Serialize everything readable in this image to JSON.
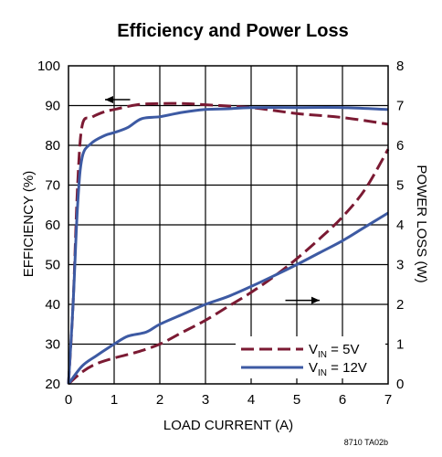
{
  "chart_data": {
    "type": "line",
    "title": "Efficiency and Power Loss",
    "xlabel": "LOAD CURRENT (A)",
    "ylabel_left": "EFFICIENCY (%)",
    "ylabel_right": "POWER LOSS (W)",
    "xlim": [
      0,
      7
    ],
    "ylim_left": [
      20,
      100
    ],
    "ylim_right": [
      0,
      8
    ],
    "x_ticks": [
      "0",
      "1",
      "2",
      "3",
      "4",
      "5",
      "6",
      "7"
    ],
    "y_left_ticks": [
      "20",
      "30",
      "40",
      "50",
      "60",
      "70",
      "80",
      "90",
      "100"
    ],
    "y_right_ticks": [
      "0",
      "1",
      "2",
      "3",
      "4",
      "5",
      "6",
      "7",
      "8"
    ],
    "grid": true,
    "legend_position": "bottom-right",
    "legend": [
      {
        "prefix": "V",
        "sub": "IN",
        "suffix": " = 5V",
        "color": "#7b1a33",
        "dash": "dashed"
      },
      {
        "prefix": "V",
        "sub": "IN",
        "suffix": " = 12V",
        "color": "#3d5aa3",
        "dash": "solid"
      }
    ],
    "series": [
      {
        "axis": "left",
        "color": "#7b1a33",
        "dash": "dashed",
        "points": [
          [
            0,
            20
          ],
          [
            0.1,
            40
          ],
          [
            0.2,
            70
          ],
          [
            0.3,
            85
          ],
          [
            0.5,
            87
          ],
          [
            0.8,
            88.5
          ],
          [
            1,
            89
          ],
          [
            1.5,
            90.2
          ],
          [
            2,
            90.5
          ],
          [
            2.5,
            90.5
          ],
          [
            3,
            90.2
          ],
          [
            4,
            89.5
          ],
          [
            5,
            88
          ],
          [
            6,
            87
          ],
          [
            7,
            85.3
          ]
        ]
      },
      {
        "axis": "left",
        "color": "#3d5aa3",
        "dash": "solid",
        "points": [
          [
            0,
            20
          ],
          [
            0.1,
            40
          ],
          [
            0.2,
            65
          ],
          [
            0.3,
            77
          ],
          [
            0.5,
            80.5
          ],
          [
            0.8,
            82.5
          ],
          [
            1,
            83.2
          ],
          [
            1.3,
            84.5
          ],
          [
            1.6,
            86.7
          ],
          [
            2,
            87.2
          ],
          [
            2.5,
            88.3
          ],
          [
            3,
            89
          ],
          [
            3.5,
            89.2
          ],
          [
            4,
            89.5
          ],
          [
            5,
            89.5
          ],
          [
            6,
            89.5
          ],
          [
            7,
            89
          ]
        ]
      },
      {
        "axis": "right",
        "color": "#7b1a33",
        "dash": "dashed",
        "points": [
          [
            0,
            0
          ],
          [
            0.3,
            0.3
          ],
          [
            0.6,
            0.5
          ],
          [
            1,
            0.65
          ],
          [
            1.5,
            0.8
          ],
          [
            2,
            1.0
          ],
          [
            2.5,
            1.3
          ],
          [
            3,
            1.6
          ],
          [
            3.5,
            1.95
          ],
          [
            4,
            2.3
          ],
          [
            4.5,
            2.7
          ],
          [
            5,
            3.15
          ],
          [
            5.5,
            3.65
          ],
          [
            6,
            4.2
          ],
          [
            6.5,
            4.9
          ],
          [
            7,
            5.9
          ]
        ]
      },
      {
        "axis": "right",
        "color": "#3d5aa3",
        "dash": "solid",
        "points": [
          [
            0,
            0
          ],
          [
            0.3,
            0.45
          ],
          [
            0.6,
            0.7
          ],
          [
            1,
            1.0
          ],
          [
            1.3,
            1.2
          ],
          [
            1.7,
            1.3
          ],
          [
            2,
            1.5
          ],
          [
            2.5,
            1.75
          ],
          [
            3,
            2.0
          ],
          [
            3.5,
            2.2
          ],
          [
            4,
            2.45
          ],
          [
            4.5,
            2.72
          ],
          [
            5,
            3.0
          ],
          [
            5.5,
            3.3
          ],
          [
            6,
            3.6
          ],
          [
            6.5,
            3.95
          ],
          [
            7,
            4.3
          ]
        ]
      }
    ],
    "annotations": [
      {
        "type": "arrow",
        "direction": "left",
        "x": [
          0.8,
          1.35
        ],
        "y": 91.5,
        "axis": "left"
      },
      {
        "type": "arrow",
        "direction": "right",
        "x": [
          4.75,
          5.5
        ],
        "y": 2.1,
        "axis": "right"
      }
    ],
    "code": "8710 TA02b"
  }
}
